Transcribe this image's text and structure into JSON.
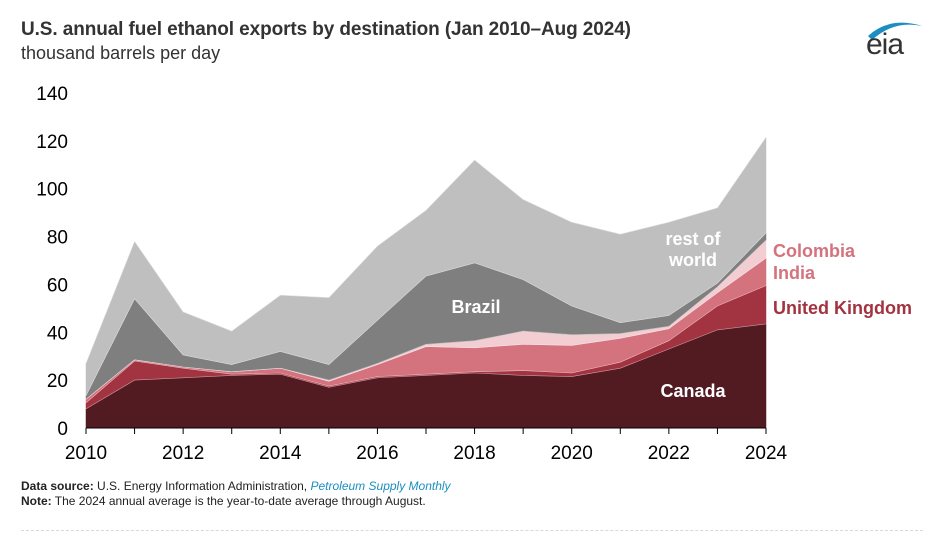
{
  "header": {
    "title": "U.S. annual fuel ethanol exports by destination (Jan 2010–Aug 2024)",
    "subtitle": "thousand barrels per day",
    "logo_text": "eia"
  },
  "footer": {
    "source_label": "Data source:",
    "source_text": "U.S. Energy Information Administration,",
    "source_link": "Petroleum Supply Monthly",
    "note_label": "Note:",
    "note_text": "The 2024 annual average is the year-to-date average through August."
  },
  "chart_data": {
    "type": "area",
    "stacked": true,
    "title": "U.S. annual fuel ethanol exports by destination (Jan 2010–Aug 2024)",
    "ylabel": "thousand barrels per day",
    "xlabel": "",
    "x": [
      2010,
      2011,
      2012,
      2013,
      2014,
      2015,
      2016,
      2017,
      2018,
      2019,
      2020,
      2021,
      2022,
      2023,
      2024
    ],
    "xticks": [
      2010,
      2012,
      2014,
      2016,
      2018,
      2020,
      2022,
      2024
    ],
    "yticks": [
      0,
      20,
      40,
      60,
      80,
      100,
      120,
      140
    ],
    "ylim": [
      0,
      140
    ],
    "xlim": [
      2010,
      2024
    ],
    "grid": false,
    "series": [
      {
        "name": "Canada",
        "color": "#521a21",
        "label_color": "#ffffff",
        "values": [
          8,
          20,
          21,
          22,
          22.5,
          17,
          21,
          22,
          23,
          22,
          21.5,
          25,
          33,
          41,
          43.5
        ]
      },
      {
        "name": "United Kingdom",
        "color": "#a23340",
        "label_color": "#a23340",
        "values": [
          2.5,
          8,
          4,
          0.5,
          0.5,
          0.5,
          0.5,
          0.5,
          0.5,
          2,
          1.5,
          2.5,
          3.5,
          10,
          16
        ]
      },
      {
        "name": "India",
        "color": "#d4727d",
        "label_color": "#d4727d",
        "values": [
          1.5,
          0.5,
          0.5,
          1,
          2,
          2,
          5,
          11.5,
          10,
          11,
          11.5,
          10,
          5,
          5.5,
          11.5
        ]
      },
      {
        "name": "Colombia",
        "color": "#f2ced3",
        "label_color": "#d4727d",
        "values": [
          0,
          0,
          0,
          0,
          0,
          0.5,
          0.5,
          1,
          3,
          5.5,
          4.5,
          2,
          1,
          2.5,
          7.5
        ]
      },
      {
        "name": "Brazil",
        "color": "#7f7f7f",
        "label_color": "#ffffff",
        "values": [
          1.5,
          25.5,
          5,
          3,
          7,
          6.5,
          18,
          28.5,
          32.5,
          21.5,
          12,
          4.5,
          4.5,
          1.5,
          3
        ]
      },
      {
        "name": "rest of world",
        "color": "#bfbfbf",
        "label_color": "#ffffff",
        "values": [
          13.5,
          24,
          18,
          14,
          23.5,
          28,
          31,
          27.5,
          43,
          33.5,
          35,
          37,
          39,
          31.5,
          40
        ]
      }
    ],
    "labels": [
      {
        "text": "Canada",
        "series": "Canada",
        "placement": "inside"
      },
      {
        "text": "United Kingdom",
        "series": "United Kingdom",
        "placement": "right"
      },
      {
        "text": "India",
        "series": "India",
        "placement": "right"
      },
      {
        "text": "Colombia",
        "series": "Colombia",
        "placement": "right"
      },
      {
        "text": "Brazil",
        "series": "Brazil",
        "placement": "inside"
      },
      {
        "text": "rest of\nworld",
        "series": "rest of world",
        "placement": "inside"
      }
    ]
  }
}
